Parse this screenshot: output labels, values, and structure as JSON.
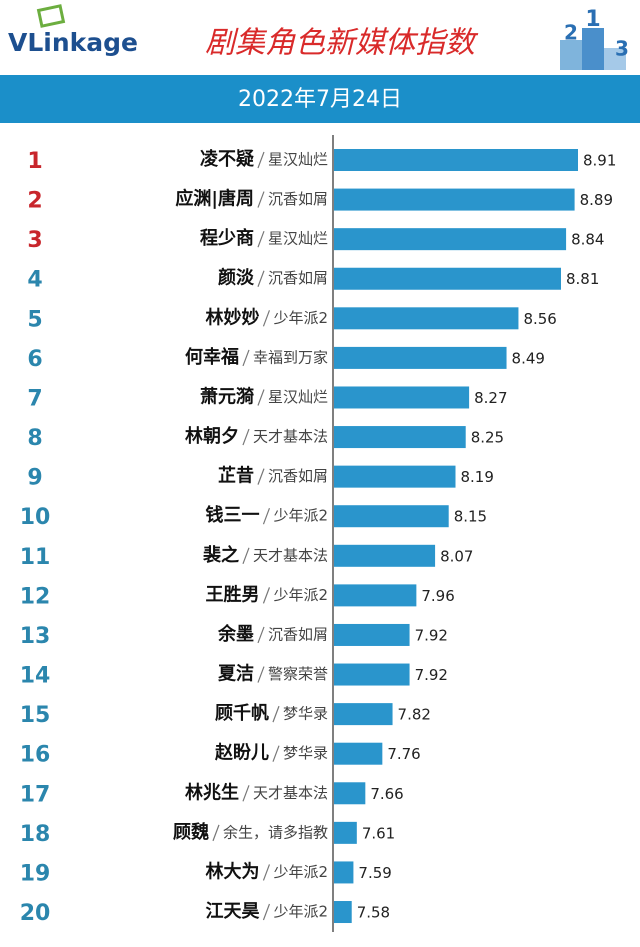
{
  "header": {
    "logo": "VLinkage",
    "podium": [
      "2",
      "1",
      "3"
    ]
  },
  "chart_data": {
    "type": "bar",
    "orientation": "horizontal",
    "title": "剧集角色新媒体指数",
    "subtitle": "2022年7月24日",
    "ranks": [
      "1",
      "2",
      "3",
      "4",
      "5",
      "6",
      "7",
      "8",
      "9",
      "10",
      "11",
      "12",
      "13",
      "14",
      "15",
      "16",
      "17",
      "18",
      "19",
      "20"
    ],
    "categories": [
      "凌不疑",
      "应渊|唐周",
      "程少商",
      "颜淡",
      "林妙妙",
      "何幸福",
      "萧元漪",
      "林朝夕",
      "芷昔",
      "钱三一",
      "裴之",
      "王胜男",
      "余墨",
      "夏洁",
      "顾千帆",
      "赵盼儿",
      "林兆生",
      "顾魏",
      "林大为",
      "江天昊"
    ],
    "shows": [
      "星汉灿烂",
      "沉香如屑",
      "星汉灿烂",
      "沉香如屑",
      "少年派2",
      "幸福到万家",
      "星汉灿烂",
      "天才基本法",
      "沉香如屑",
      "少年派2",
      "天才基本法",
      "少年派2",
      "沉香如屑",
      "警察荣誉",
      "梦华录",
      "梦华录",
      "天才基本法",
      "余生，请多指教",
      "少年派2",
      "少年派2"
    ],
    "values": [
      8.91,
      8.89,
      8.84,
      8.81,
      8.56,
      8.49,
      8.27,
      8.25,
      8.19,
      8.15,
      8.07,
      7.96,
      7.92,
      7.92,
      7.82,
      7.76,
      7.66,
      7.61,
      7.59,
      7.58
    ],
    "xlim": [
      7.47,
      8.91
    ],
    "color": "#2a95cc",
    "top_rank_color": "#c8262c",
    "rank_color": "#2b86ad"
  }
}
